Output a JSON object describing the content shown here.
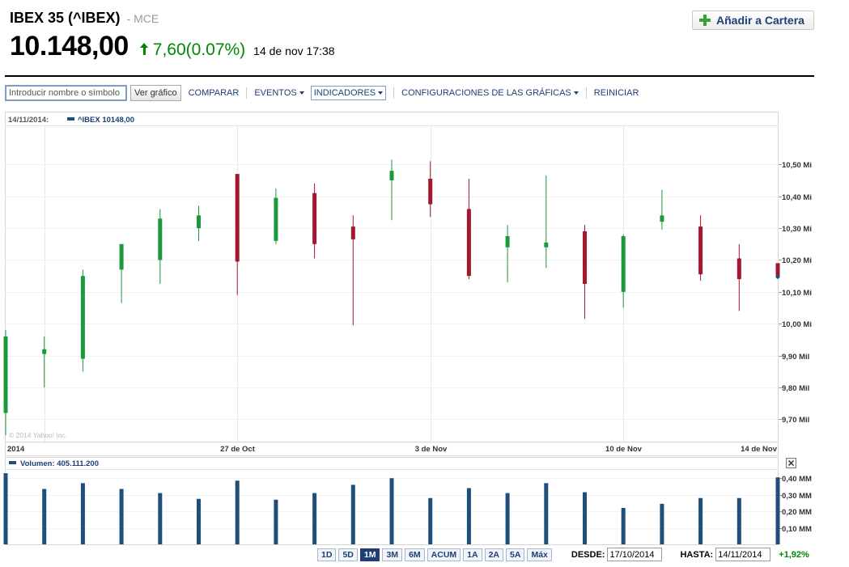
{
  "header": {
    "ticker": "IBEX 35 (^IBEX)",
    "exchange": "- MCE",
    "price": "10.148,00",
    "change": "7,60",
    "change_pct": "(0.07%)",
    "timestamp": "14 de nov 17:38",
    "add_button": "Añadir a Cartera"
  },
  "toolbar": {
    "search_placeholder": "Introducir nombre o símbolo",
    "go_button": "Ver gráfico",
    "compare": "COMPARAR",
    "events": "EVENTOS",
    "indicators": "INDICADORES",
    "settings": "CONFIGURACIONES DE LAS GRÁFICAS",
    "reset": "REINICIAR"
  },
  "legend": {
    "date": "14/11/2014:",
    "series": "^IBEX 10148,00",
    "volume": "Volumen: 405.111.200"
  },
  "watermark": "© 2014 Yahoo! Inc.",
  "colors": {
    "up": "#1a9a3c",
    "down": "#a3172f",
    "volume": "#1f4e7a",
    "accent": "#1d3f75",
    "positive": "#008800"
  },
  "chart_data": [
    {
      "type": "candlestick",
      "title": "",
      "x_tick_labels": [
        "2014",
        "27 de Oct",
        "3 de Nov",
        "10 de Nov",
        "14 de Nov"
      ],
      "y_tick_labels": [
        "10,50 Mi",
        "10,40 Mi",
        "10,30 Mi",
        "10,20 Mi",
        "10,10 Mi",
        "10,00 Mi",
        "9,90 Mil",
        "9,80 Mil",
        "9,70 Mil"
      ],
      "ylim": [
        9.63,
        10.62
      ],
      "y_unit": "miles",
      "grid": true,
      "candles": [
        {
          "date": "17/10/2014",
          "open": 9.72,
          "high": 9.98,
          "low": 9.65,
          "close": 9.96
        },
        {
          "date": "20/10/2014",
          "open": 9.905,
          "high": 9.96,
          "low": 9.8,
          "close": 9.92
        },
        {
          "date": "21/10/2014",
          "open": 9.89,
          "high": 10.17,
          "low": 9.85,
          "close": 10.15
        },
        {
          "date": "22/10/2014",
          "open": 10.17,
          "high": 10.25,
          "low": 10.065,
          "close": 10.25
        },
        {
          "date": "23/10/2014",
          "open": 10.2,
          "high": 10.36,
          "low": 10.125,
          "close": 10.33
        },
        {
          "date": "24/10/2014",
          "open": 10.3,
          "high": 10.37,
          "low": 10.26,
          "close": 10.34
        },
        {
          "date": "27/10/2014",
          "open": 10.47,
          "high": 10.47,
          "low": 10.09,
          "close": 10.195
        },
        {
          "date": "28/10/2014",
          "open": 10.26,
          "high": 10.425,
          "low": 10.25,
          "close": 10.395
        },
        {
          "date": "29/10/2014",
          "open": 10.41,
          "high": 10.44,
          "low": 10.205,
          "close": 10.25
        },
        {
          "date": "30/10/2014",
          "open": 10.305,
          "high": 10.34,
          "low": 9.995,
          "close": 10.265
        },
        {
          "date": "31/10/2014",
          "open": 10.45,
          "high": 10.515,
          "low": 10.325,
          "close": 10.48
        },
        {
          "date": "03/11/2014",
          "open": 10.455,
          "high": 10.51,
          "low": 10.335,
          "close": 10.375
        },
        {
          "date": "04/11/2014",
          "open": 10.36,
          "high": 10.455,
          "low": 10.14,
          "close": 10.15
        },
        {
          "date": "05/11/2014",
          "open": 10.24,
          "high": 10.31,
          "low": 10.13,
          "close": 10.275
        },
        {
          "date": "06/11/2014",
          "open": 10.24,
          "high": 10.465,
          "low": 10.175,
          "close": 10.255
        },
        {
          "date": "07/11/2014",
          "open": 10.29,
          "high": 10.31,
          "low": 10.015,
          "close": 10.125
        },
        {
          "date": "10/11/2014",
          "open": 10.1,
          "high": 10.28,
          "low": 10.05,
          "close": 10.275
        },
        {
          "date": "11/11/2014",
          "open": 10.32,
          "high": 10.42,
          "low": 10.295,
          "close": 10.34
        },
        {
          "date": "12/11/2014",
          "open": 10.305,
          "high": 10.34,
          "low": 10.135,
          "close": 10.155
        },
        {
          "date": "13/11/2014",
          "open": 10.205,
          "high": 10.25,
          "low": 10.04,
          "close": 10.14
        },
        {
          "date": "14/11/2014",
          "open": 10.19,
          "high": 10.19,
          "low": 10.14,
          "close": 10.148
        }
      ]
    },
    {
      "type": "bar",
      "title": "",
      "y_tick_labels": [
        "0,40 MM",
        "0,30 MM",
        "0,20 MM",
        "0,10 MM"
      ],
      "ylim": [
        0,
        0.445
      ],
      "y_unit": "MM",
      "values": [
        0.43,
        0.335,
        0.37,
        0.335,
        0.31,
        0.275,
        0.385,
        0.27,
        0.31,
        0.36,
        0.4,
        0.28,
        0.34,
        0.31,
        0.37,
        0.315,
        0.22,
        0.245,
        0.28,
        0.28,
        0.405
      ]
    }
  ],
  "range_buttons": [
    "1D",
    "5D",
    "1M",
    "3M",
    "6M",
    "ACUM",
    "1A",
    "2A",
    "5A",
    "Máx"
  ],
  "active_range": "1M",
  "range_labels": {
    "from": "DESDE:",
    "to": "HASTA:"
  },
  "range_values": {
    "from": "17/10/2014",
    "to": "14/11/2014",
    "pct": "+1,92%"
  }
}
